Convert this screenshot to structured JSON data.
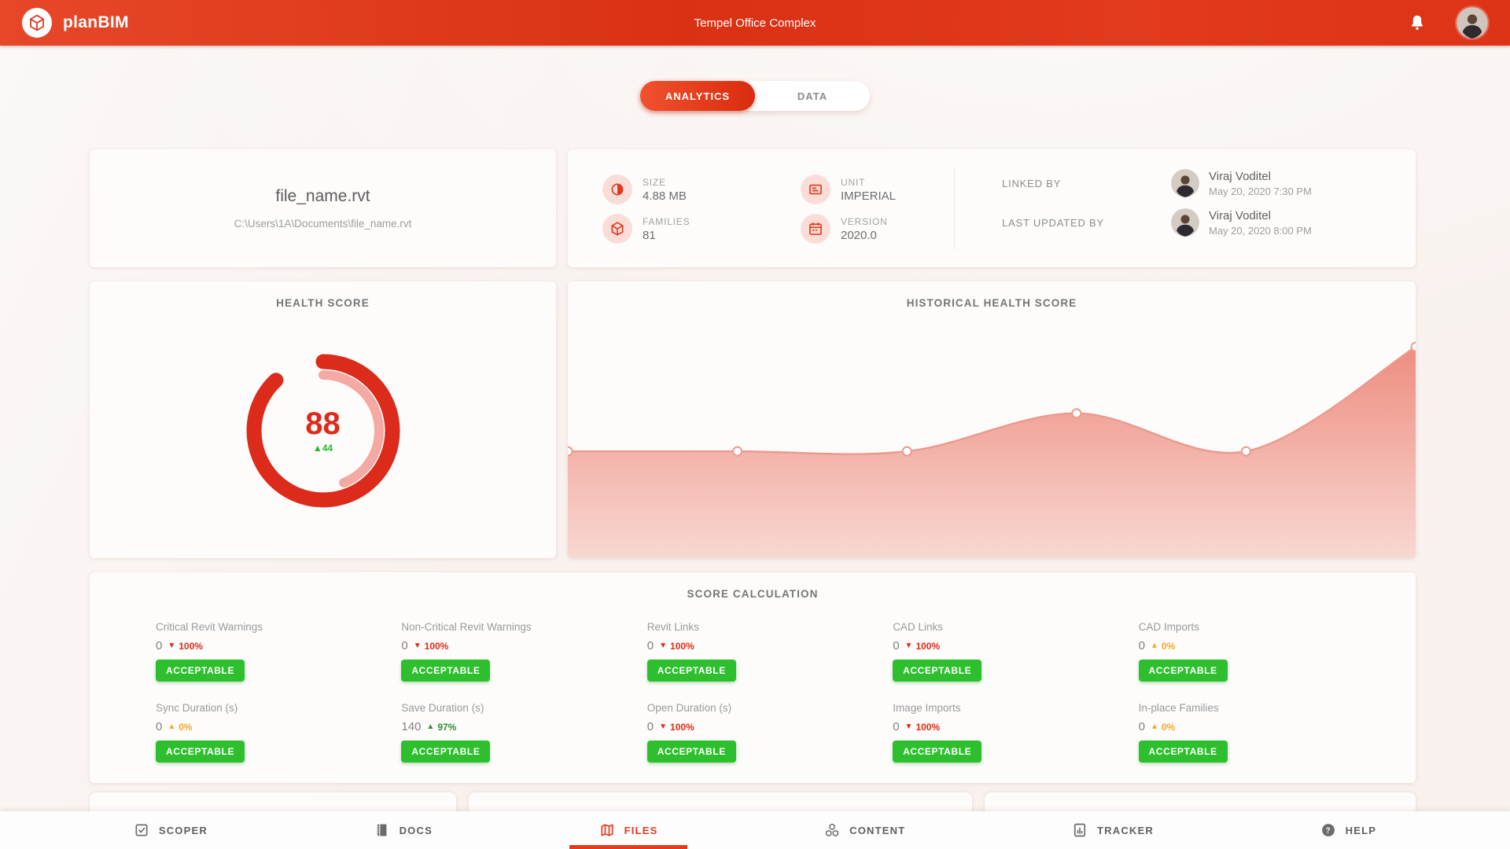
{
  "topbar": {
    "brand": "planBIM",
    "project_title": "Tempel Office Complex"
  },
  "tabs": [
    {
      "label": "ANALYTICS",
      "active": true
    },
    {
      "label": "DATA",
      "active": false
    }
  ],
  "file_card": {
    "name": "file_name.rvt",
    "path": "C:\\Users\\1A\\Documents\\file_name.rvt"
  },
  "info_card": {
    "stats": [
      {
        "label": "SIZE",
        "value": "4.88 MB",
        "icon": "size-icon"
      },
      {
        "label": "UNIT",
        "value": "IMPERIAL",
        "icon": "unit-icon"
      },
      {
        "label": "FAMILIES",
        "value": "81",
        "icon": "families-icon"
      },
      {
        "label": "VERSION",
        "value": "2020.0",
        "icon": "version-icon"
      }
    ],
    "people": [
      {
        "label": "LINKED BY",
        "name": "Viraj Voditel",
        "date": "May 20, 2020 7:30 PM"
      },
      {
        "label": "LAST UPDATED BY",
        "name": "Viraj Voditel",
        "date": "May 20, 2020 8:00 PM"
      }
    ]
  },
  "health": {
    "title": "HEALTH SCORE",
    "score": "88",
    "delta_label": "▲44"
  },
  "historical": {
    "title": "HISTORICAL HEALTH SCORE"
  },
  "score_calc": {
    "title": "SCORE CALCULATION",
    "metrics": [
      {
        "label": "Critical Revit Warnings",
        "value": "0",
        "trend": "down",
        "pct": "100%",
        "color": "red",
        "status": "ACCEPTABLE"
      },
      {
        "label": "Non-Critical Revit Warnings",
        "value": "0",
        "trend": "down",
        "pct": "100%",
        "color": "red",
        "status": "ACCEPTABLE"
      },
      {
        "label": "Revit Links",
        "value": "0",
        "trend": "down",
        "pct": "100%",
        "color": "red",
        "status": "ACCEPTABLE"
      },
      {
        "label": "CAD Links",
        "value": "0",
        "trend": "down",
        "pct": "100%",
        "color": "red",
        "status": "ACCEPTABLE"
      },
      {
        "label": "CAD Imports",
        "value": "0",
        "trend": "up",
        "pct": "0%",
        "color": "orange",
        "status": "ACCEPTABLE"
      },
      {
        "label": "Sync Duration (s)",
        "value": "0",
        "trend": "up",
        "pct": "0%",
        "color": "orange",
        "status": "ACCEPTABLE"
      },
      {
        "label": "Save Duration (s)",
        "value": "140",
        "trend": "up",
        "pct": "97%",
        "color": "green",
        "status": "ACCEPTABLE"
      },
      {
        "label": "Open Duration (s)",
        "value": "0",
        "trend": "down",
        "pct": "100%",
        "color": "red",
        "status": "ACCEPTABLE"
      },
      {
        "label": "Image Imports",
        "value": "0",
        "trend": "down",
        "pct": "100%",
        "color": "red",
        "status": "ACCEPTABLE"
      },
      {
        "label": "In-place Families",
        "value": "0",
        "trend": "up",
        "pct": "0%",
        "color": "orange",
        "status": "ACCEPTABLE"
      }
    ]
  },
  "bottom_nav": [
    {
      "label": "SCOPER",
      "icon": "scoper-checklist-icon",
      "active": false
    },
    {
      "label": "DOCS",
      "icon": "docs-icon",
      "active": false
    },
    {
      "label": "FILES",
      "icon": "files-map-icon",
      "active": true
    },
    {
      "label": "CONTENT",
      "icon": "content-cubes-icon",
      "active": false
    },
    {
      "label": "TRACKER",
      "icon": "tracker-chart-icon",
      "active": false
    },
    {
      "label": "HELP",
      "icon": "help-icon",
      "active": false
    }
  ],
  "colors": {
    "primary_red": "#e23a20",
    "donut_red": "#dc2a1b",
    "donut_pink": "#f4a9a2",
    "badge_green": "#2dbf2d",
    "trend_red": "#e02a12",
    "trend_orange": "#f5a623",
    "trend_green": "#2e8b2e"
  },
  "chart_data": [
    {
      "type": "donut",
      "title": "HEALTH SCORE",
      "value": 88,
      "max": 100,
      "previous_value": 44,
      "delta": "+44",
      "colors": {
        "current": "#dc2a1b",
        "previous": "#f4a9a2"
      }
    },
    {
      "type": "area",
      "title": "HISTORICAL HEALTH SCORE",
      "x": [
        1,
        2,
        3,
        4,
        5,
        6
      ],
      "values": [
        44,
        44,
        44,
        60,
        44,
        88
      ],
      "ylim": [
        0,
        115
      ],
      "grid": false,
      "legend": false,
      "line_color": "#eb9a8e",
      "fill_top": "#ee8d80",
      "fill_bottom": "#f8d8d2",
      "markers": true
    }
  ]
}
